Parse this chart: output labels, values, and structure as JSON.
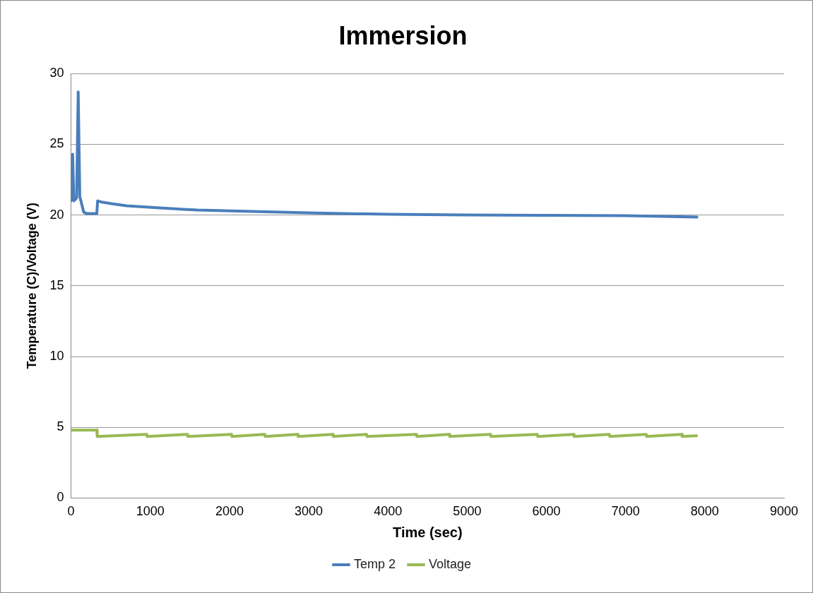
{
  "chart_data": {
    "type": "line",
    "title": "Immersion",
    "xlabel": "Time (sec)",
    "ylabel": "Temperature (C)/Voltage (V)",
    "xlim": [
      0,
      9000
    ],
    "xticks": [
      0,
      1000,
      2000,
      3000,
      4000,
      5000,
      6000,
      7000,
      8000,
      9000
    ],
    "ylim": [
      0,
      30
    ],
    "yticks": [
      0,
      5,
      10,
      15,
      20,
      25,
      30
    ],
    "grid": "y",
    "legend": "bottom",
    "marker": "none",
    "line_style": "solid",
    "series": [
      {
        "name": "Temp 2",
        "color": "#4a7ebb",
        "x": [
          0,
          20,
          35,
          70,
          90,
          110,
          160,
          200,
          325,
          335,
          400,
          510,
          700,
          1120,
          1600,
          2280,
          3000,
          4000,
          5000,
          6000,
          7000,
          7900
        ],
        "values": [
          21,
          24.3,
          21,
          21.2,
          28.7,
          21.3,
          20.2,
          20.1,
          20.1,
          21,
          20.9,
          20.8,
          20.65,
          20.5,
          20.35,
          20.25,
          20.15,
          20.05,
          20,
          19.98,
          19.95,
          19.85
        ]
      },
      {
        "name": "Voltage",
        "color": "#98b954",
        "x": [
          0,
          325,
          330,
          955,
          960,
          1470,
          1475,
          2025,
          2030,
          2445,
          2450,
          2860,
          2865,
          3305,
          3310,
          3730,
          3735,
          4360,
          4365,
          4775,
          4780,
          5295,
          5300,
          5885,
          5890,
          6345,
          6350,
          6795,
          6800,
          7260,
          7265,
          7710,
          7715,
          7895
        ],
        "values": [
          4.8,
          4.8,
          4.35,
          4.5,
          4.35,
          4.5,
          4.35,
          4.5,
          4.35,
          4.5,
          4.35,
          4.5,
          4.35,
          4.5,
          4.35,
          4.5,
          4.35,
          4.5,
          4.35,
          4.5,
          4.35,
          4.5,
          4.35,
          4.5,
          4.35,
          4.5,
          4.35,
          4.5,
          4.35,
          4.5,
          4.35,
          4.5,
          4.35,
          4.4
        ]
      }
    ]
  }
}
